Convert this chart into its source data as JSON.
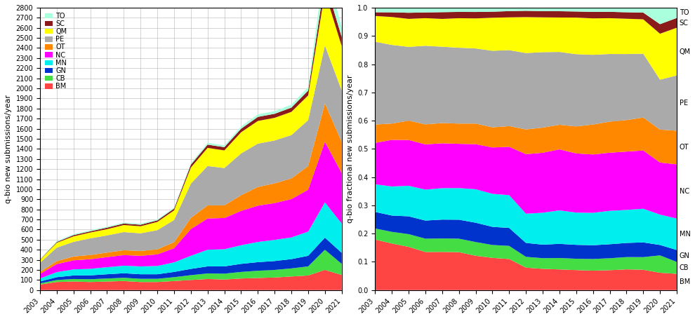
{
  "years": [
    2003,
    2004,
    2005,
    2006,
    2007,
    2008,
    2009,
    2010,
    2011,
    2012,
    2013,
    2014,
    2015,
    2016,
    2017,
    2018,
    2019,
    2020,
    2021
  ],
  "categories": [
    "BM",
    "CB",
    "GN",
    "MN",
    "NC",
    "OT",
    "PE",
    "QM",
    "SC",
    "TO"
  ],
  "colors": [
    "#ff4444",
    "#44dd44",
    "#0033cc",
    "#00eeee",
    "#ff00ff",
    "#ff8800",
    "#aaaaaa",
    "#ffff00",
    "#8b1a1a",
    "#aaffdd"
  ],
  "data": {
    "BM": [
      55,
      80,
      85,
      80,
      85,
      90,
      80,
      80,
      90,
      100,
      110,
      105,
      115,
      120,
      125,
      135,
      145,
      200,
      150
    ],
    "CB": [
      12,
      20,
      25,
      28,
      30,
      32,
      32,
      32,
      38,
      48,
      55,
      58,
      65,
      72,
      75,
      80,
      90,
      200,
      110
    ],
    "GN": [
      18,
      28,
      35,
      38,
      42,
      45,
      45,
      45,
      52,
      62,
      70,
      72,
      80,
      85,
      88,
      92,
      105,
      120,
      110
    ],
    "MN": [
      30,
      50,
      60,
      65,
      70,
      75,
      78,
      82,
      95,
      130,
      165,
      170,
      185,
      200,
      210,
      215,
      240,
      350,
      290
    ],
    "NC": [
      45,
      80,
      90,
      95,
      100,
      105,
      105,
      115,
      140,
      265,
      310,
      310,
      340,
      360,
      365,
      380,
      415,
      600,
      500
    ],
    "OT": [
      20,
      28,
      38,
      42,
      45,
      48,
      48,
      50,
      60,
      110,
      130,
      125,
      155,
      185,
      195,
      205,
      235,
      380,
      310
    ],
    "PE": [
      90,
      135,
      145,
      165,
      170,
      180,
      175,
      190,
      220,
      340,
      390,
      370,
      415,
      430,
      425,
      430,
      455,
      575,
      510
    ],
    "QM": [
      28,
      48,
      55,
      58,
      62,
      70,
      70,
      82,
      95,
      160,
      180,
      175,
      210,
      225,
      225,
      230,
      245,
      530,
      440
    ],
    "SC": [
      4,
      8,
      12,
      12,
      15,
      15,
      15,
      15,
      18,
      28,
      32,
      32,
      35,
      40,
      40,
      42,
      48,
      110,
      90
    ],
    "TO": [
      5,
      8,
      10,
      10,
      10,
      10,
      10,
      10,
      10,
      14,
      18,
      18,
      22,
      26,
      26,
      30,
      35,
      190,
      95
    ]
  },
  "ylabel_left": "q-bio new submissions/year",
  "ylabel_right": "q-bio fractional new submissions/year",
  "ylim_left": [
    0,
    2800
  ],
  "bg_color": "#ffffff",
  "grid_color": "#aaaaaa"
}
